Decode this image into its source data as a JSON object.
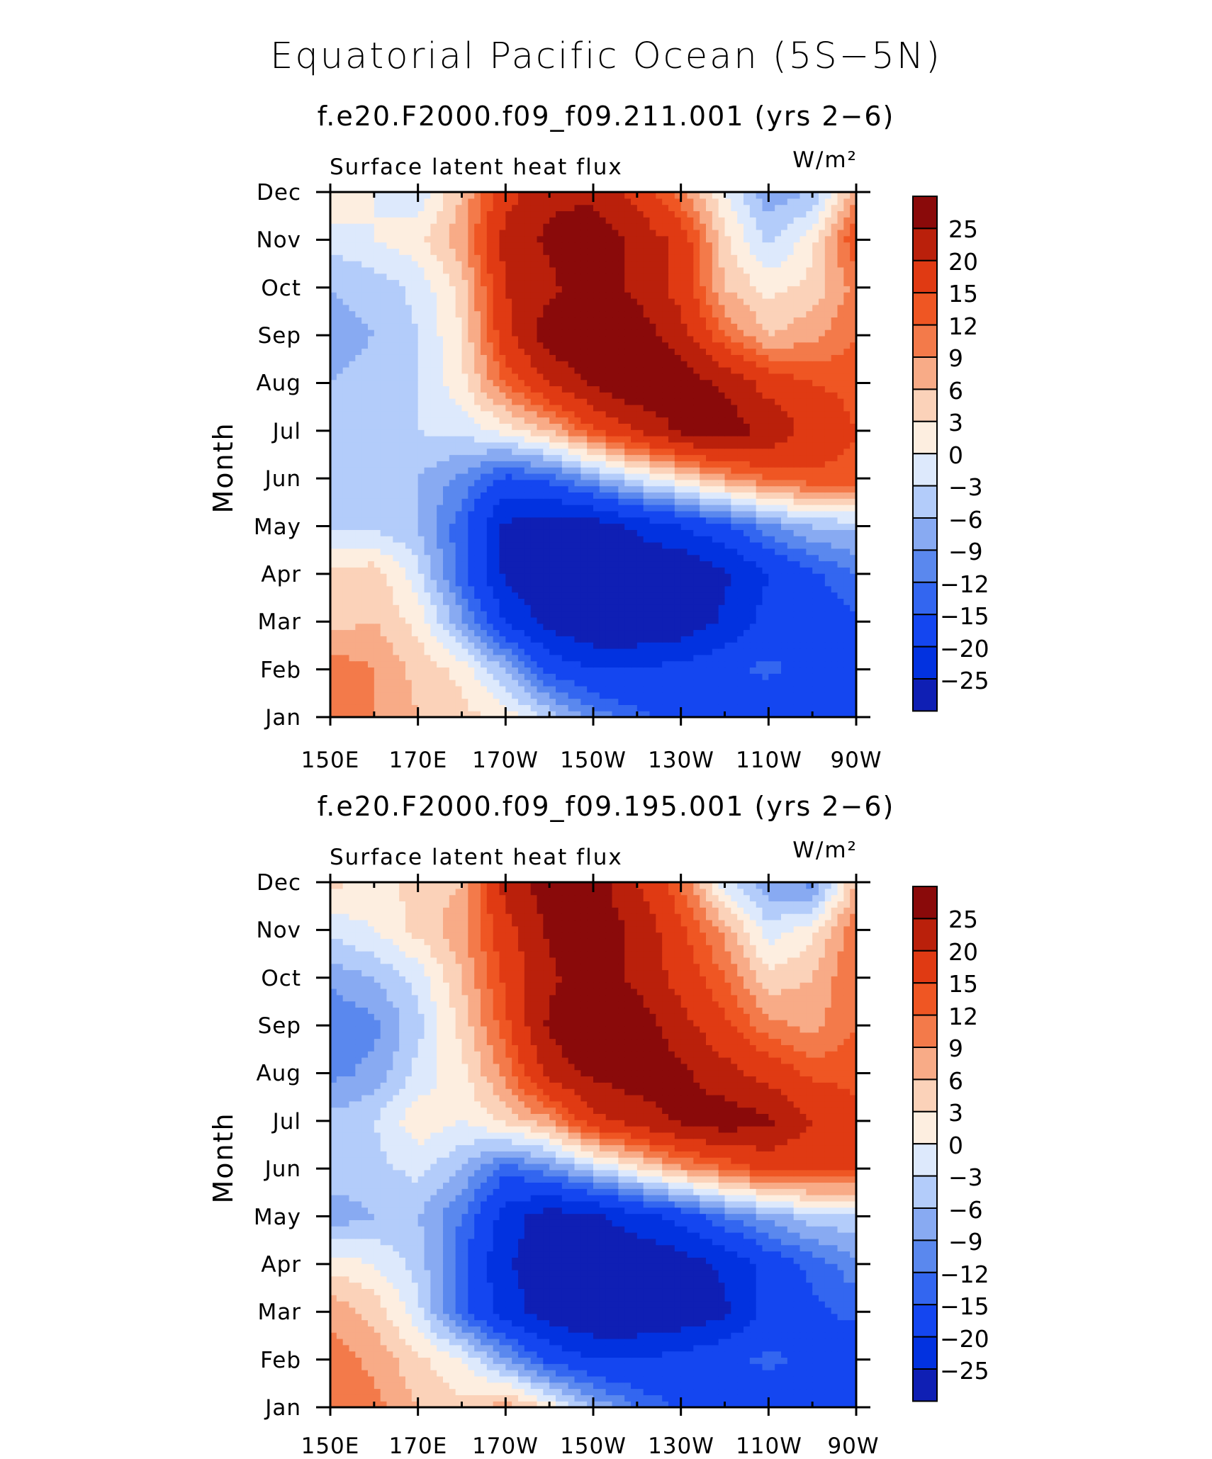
{
  "figure": {
    "title": "Equatorial Pacific Ocean (5S−5N)"
  },
  "colors": [
    "#00007f",
    "#0f1fb4",
    "#0232e0",
    "#1446f0",
    "#3366f0",
    "#5a88ee",
    "#88aaf2",
    "#b3ccfa",
    "#dde9fc",
    "#fdeee0",
    "#fbd2b9",
    "#f8ab87",
    "#f37a4a",
    "#ef5623",
    "#e03a13",
    "#ba200b",
    "#8a0a0a"
  ],
  "chart_data": [
    {
      "type": "contour",
      "title": "f.e20.F2000.f09_f09.211.001 (yrs 2−6)",
      "variable": "Surface latent heat flux",
      "units": "W/m²",
      "xlabel": "",
      "ylabel": "Month",
      "x_ticks": [
        "150E",
        "170E",
        "170W",
        "150W",
        "130W",
        "110W",
        "90W"
      ],
      "y_ticks": [
        "Jan",
        "Feb",
        "Mar",
        "Apr",
        "May",
        "Jun",
        "Jul",
        "Aug",
        "Sep",
        "Oct",
        "Nov",
        "Dec"
      ],
      "xlim": [
        "150E",
        "90W"
      ],
      "contour_levels": [
        -25,
        -20,
        -15,
        -12,
        -9,
        -6,
        -3,
        0,
        3,
        6,
        9,
        12,
        15,
        20,
        25
      ],
      "colorbar_labels": [
        "25",
        "20",
        "15",
        "12",
        "9",
        "6",
        "3",
        "0",
        "−3",
        "−6",
        "−9",
        "−12",
        "−15",
        "−20",
        "−25"
      ],
      "x_lon": [
        150,
        160,
        170,
        180,
        190,
        200,
        210,
        220,
        230,
        240,
        250,
        260,
        270
      ],
      "months": [
        "Jan",
        "Feb",
        "Mar",
        "Apr",
        "May",
        "Jun",
        "Jul",
        "Aug",
        "Sep",
        "Oct",
        "Nov",
        "Dec"
      ],
      "z": [
        [
          10,
          9,
          6,
          4,
          2,
          -4,
          -10,
          -14,
          -16,
          -18,
          -20,
          -18,
          -17
        ],
        [
          11,
          9,
          5,
          2,
          -6,
          -16,
          -20,
          -20,
          -18,
          -16,
          -14,
          -17,
          -18
        ],
        [
          5,
          6,
          2,
          -8,
          -20,
          -27,
          -30,
          -30,
          -29,
          -24,
          -18,
          -17,
          -16
        ],
        [
          4,
          5,
          -2,
          -14,
          -26,
          -30,
          -30,
          -30,
          -30,
          -26,
          -20,
          -16,
          -12
        ],
        [
          -3,
          -4,
          -6,
          -14,
          -26,
          -28,
          -28,
          -24,
          -20,
          -16,
          -10,
          -6,
          -5
        ],
        [
          -6,
          -6,
          -6,
          -10,
          -16,
          -14,
          -8,
          -2,
          3,
          8,
          12,
          14,
          14
        ],
        [
          -5,
          -4,
          -3,
          -2,
          1,
          6,
          14,
          20,
          26,
          28,
          24,
          18,
          15
        ],
        [
          -6,
          -5,
          -3,
          2,
          12,
          20,
          26,
          30,
          28,
          24,
          18,
          15,
          14
        ],
        [
          -7,
          -6,
          -3,
          3,
          18,
          28,
          30,
          28,
          22,
          12,
          6,
          8,
          12
        ],
        [
          -6,
          -5,
          -2,
          4,
          20,
          24,
          28,
          24,
          18,
          6,
          2,
          4,
          10
        ],
        [
          -2,
          0,
          2,
          8,
          22,
          26,
          28,
          24,
          18,
          4,
          -4,
          2,
          15
        ],
        [
          3,
          0,
          -2,
          6,
          18,
          24,
          24,
          18,
          10,
          0,
          -8,
          -6,
          8
        ]
      ]
    },
    {
      "type": "contour",
      "title": "f.e20.F2000.f09_f09.195.001 (yrs 2−6)",
      "variable": "Surface latent heat flux",
      "units": "W/m²",
      "xlabel": "",
      "ylabel": "Month",
      "x_ticks": [
        "150E",
        "170E",
        "170W",
        "150W",
        "130W",
        "110W",
        "90W"
      ],
      "y_ticks": [
        "Jan",
        "Feb",
        "Mar",
        "Apr",
        "May",
        "Jun",
        "Jul",
        "Aug",
        "Sep",
        "Oct",
        "Nov",
        "Dec"
      ],
      "xlim": [
        "150E",
        "90W"
      ],
      "contour_levels": [
        -25,
        -20,
        -15,
        -12,
        -9,
        -6,
        -3,
        0,
        3,
        6,
        9,
        12,
        15,
        20,
        25
      ],
      "colorbar_labels": [
        "25",
        "20",
        "15",
        "12",
        "9",
        "6",
        "3",
        "0",
        "−3",
        "−6",
        "−9",
        "−12",
        "−15",
        "−20",
        "−25"
      ],
      "x_lon": [
        150,
        160,
        170,
        180,
        190,
        200,
        210,
        220,
        230,
        240,
        250,
        260,
        270
      ],
      "months": [
        "Jan",
        "Feb",
        "Mar",
        "Apr",
        "May",
        "Jun",
        "Jul",
        "Aug",
        "Sep",
        "Oct",
        "Nov",
        "Dec"
      ],
      "z": [
        [
          12,
          10,
          6,
          4,
          8,
          2,
          -6,
          -12,
          -16,
          -18,
          -19,
          -18,
          -17
        ],
        [
          11,
          8,
          4,
          0,
          -8,
          -16,
          -20,
          -20,
          -18,
          -16,
          -14,
          -16,
          -18
        ],
        [
          8,
          5,
          -2,
          -14,
          -22,
          -28,
          -30,
          -30,
          -29,
          -26,
          -18,
          -16,
          -14
        ],
        [
          2,
          0,
          -4,
          -14,
          -24,
          -30,
          -30,
          -30,
          -28,
          -24,
          -18,
          -14,
          -10
        ],
        [
          -8,
          -6,
          -6,
          -12,
          -22,
          -28,
          -26,
          -22,
          -18,
          -12,
          -8,
          -4,
          -4
        ],
        [
          -4,
          -4,
          -2,
          -6,
          -14,
          -10,
          -4,
          2,
          8,
          12,
          16,
          16,
          16
        ],
        [
          -5,
          -3,
          2,
          0,
          4,
          8,
          18,
          22,
          26,
          28,
          26,
          20,
          16
        ],
        [
          -10,
          -8,
          -2,
          2,
          10,
          22,
          26,
          28,
          26,
          22,
          18,
          14,
          14
        ],
        [
          -12,
          -10,
          -4,
          4,
          14,
          26,
          30,
          28,
          22,
          16,
          10,
          8,
          12
        ],
        [
          -8,
          -6,
          -2,
          6,
          16,
          24,
          28,
          24,
          18,
          12,
          4,
          6,
          12
        ],
        [
          -2,
          0,
          4,
          8,
          18,
          26,
          28,
          24,
          16,
          8,
          -2,
          2,
          12
        ],
        [
          4,
          2,
          4,
          6,
          22,
          28,
          28,
          20,
          12,
          -2,
          -8,
          -10,
          6
        ]
      ]
    }
  ]
}
